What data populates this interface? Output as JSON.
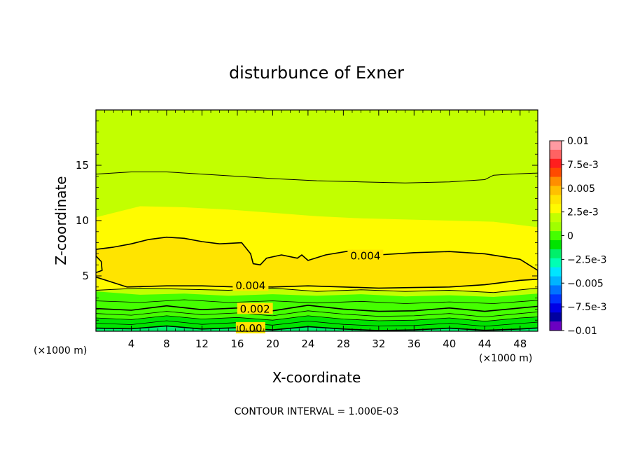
{
  "chart_data": {
    "type": "contour",
    "title": "disturbunce of Exner",
    "xlabel": "X-coordinate",
    "ylabel": "Z-coordinate",
    "x_unit_left": "(×1000 m)",
    "x_unit_right": "(×1000 m)",
    "footer": "CONTOUR INTERVAL = 1.000E-03",
    "xlim": [
      0,
      50
    ],
    "ylim": [
      0,
      20
    ],
    "x_ticks": [
      4,
      8,
      12,
      16,
      20,
      24,
      28,
      32,
      36,
      40,
      44,
      48
    ],
    "y_ticks": [
      5,
      10,
      15
    ],
    "colorbar": {
      "min": -0.01,
      "max": 0.01,
      "labels": [
        "0.01",
        "7.5e-3",
        "0.005",
        "2.5e-3",
        "0",
        "−2.5e-3",
        "−0.005",
        "−7.5e-3",
        "−0.01"
      ],
      "colors": [
        "#ff9aa2",
        "#ff6262",
        "#ff1e1e",
        "#ff4a00",
        "#ff8e00",
        "#ffc000",
        "#ffe400",
        "#fffb00",
        "#c2ff00",
        "#a0ff00",
        "#45ff00",
        "#00e400",
        "#00f06a",
        "#00ffb4",
        "#00e5ff",
        "#00b4ff",
        "#0073ff",
        "#0033ff",
        "#0000e6",
        "#0000a0",
        "#6a00c2"
      ]
    },
    "regions": [
      {
        "name": "fill-0.002",
        "color": "#45ff00",
        "points": [
          [
            0,
            0
          ],
          [
            0,
            3.6
          ],
          [
            5,
            3.3
          ],
          [
            10,
            3.4
          ],
          [
            15,
            3.2
          ],
          [
            20,
            3.35
          ],
          [
            25,
            3.2
          ],
          [
            30,
            3.35
          ],
          [
            35,
            3.15
          ],
          [
            40,
            3.25
          ],
          [
            45,
            3.1
          ],
          [
            50,
            3.4
          ],
          [
            50,
            0
          ]
        ]
      },
      {
        "name": "fill-0.001",
        "color": "#00e400",
        "points": [
          [
            0,
            0
          ],
          [
            0,
            1.2
          ],
          [
            4,
            1.05
          ],
          [
            8,
            1.4
          ],
          [
            12,
            1.1
          ],
          [
            16,
            1.25
          ],
          [
            20,
            1.0
          ],
          [
            24,
            1.4
          ],
          [
            28,
            1.1
          ],
          [
            32,
            0.95
          ],
          [
            36,
            1.0
          ],
          [
            40,
            1.2
          ],
          [
            44,
            0.9
          ],
          [
            48,
            1.2
          ],
          [
            50,
            1.3
          ],
          [
            50,
            0
          ]
        ]
      },
      {
        "name": "fill-0",
        "color": "#00f06a",
        "points": [
          [
            0,
            0
          ],
          [
            0,
            0.28
          ],
          [
            4,
            0.22
          ],
          [
            8,
            0.48
          ],
          [
            12,
            0.2
          ],
          [
            16,
            0.32
          ],
          [
            20,
            0.12
          ],
          [
            24,
            0.42
          ],
          [
            28,
            0.2
          ],
          [
            32,
            0.06
          ],
          [
            36,
            0.12
          ],
          [
            40,
            0.28
          ],
          [
            44,
            0.08
          ],
          [
            48,
            0.2
          ],
          [
            50,
            0.3
          ],
          [
            50,
            0
          ]
        ]
      },
      {
        "name": "fill-0.003",
        "color": "#fffb00",
        "points": [
          [
            0,
            3.7
          ],
          [
            5,
            3.9
          ],
          [
            10,
            3.8
          ],
          [
            15,
            3.7
          ],
          [
            20,
            3.9
          ],
          [
            25,
            3.6
          ],
          [
            30,
            3.75
          ],
          [
            35,
            3.6
          ],
          [
            40,
            3.7
          ],
          [
            45,
            3.5
          ],
          [
            50,
            3.9
          ],
          [
            50,
            9.4
          ],
          [
            45,
            9.9
          ],
          [
            40,
            10.0
          ],
          [
            35,
            10.1
          ],
          [
            30,
            10.2
          ],
          [
            25,
            10.4
          ],
          [
            20,
            10.7
          ],
          [
            15,
            11.0
          ],
          [
            10,
            11.2
          ],
          [
            5,
            11.3
          ],
          [
            1,
            10.5
          ],
          [
            0,
            10.3
          ]
        ]
      },
      {
        "name": "fill-0.004",
        "color": "#ffe400",
        "points": [
          [
            0,
            4.9
          ],
          [
            3.5,
            4.0
          ],
          [
            8,
            4.1
          ],
          [
            12,
            4.1
          ],
          [
            16,
            4.0
          ],
          [
            20,
            4.0
          ],
          [
            24,
            4.1
          ],
          [
            28,
            4.0
          ],
          [
            32,
            3.9
          ],
          [
            36,
            3.95
          ],
          [
            40,
            4.0
          ],
          [
            44,
            4.2
          ],
          [
            48,
            4.6
          ],
          [
            50,
            4.7
          ],
          [
            50,
            5.5
          ],
          [
            48,
            6.5
          ],
          [
            44,
            7.0
          ],
          [
            40,
            7.2
          ],
          [
            36,
            7.1
          ],
          [
            32,
            6.9
          ],
          [
            29,
            7.3
          ],
          [
            26,
            6.9
          ],
          [
            24,
            6.4
          ],
          [
            23.3,
            6.9
          ],
          [
            22.8,
            6.6
          ],
          [
            21,
            6.9
          ],
          [
            19.3,
            6.6
          ],
          [
            18.6,
            6.0
          ],
          [
            17.8,
            6.1
          ],
          [
            17.5,
            7.0
          ],
          [
            16.5,
            8.0
          ],
          [
            14,
            7.9
          ],
          [
            12,
            8.1
          ],
          [
            10,
            8.4
          ],
          [
            8,
            8.5
          ],
          [
            6,
            8.3
          ],
          [
            4,
            7.9
          ],
          [
            2,
            7.6
          ],
          [
            0,
            7.4
          ],
          [
            0,
            6.8
          ],
          [
            0.6,
            6.3
          ],
          [
            0.7,
            5.5
          ],
          [
            0,
            5.3
          ]
        ]
      }
    ],
    "contours": [
      {
        "name": "contour-0.003-lower",
        "width": 1,
        "points": [
          [
            0,
            3.7
          ],
          [
            5,
            3.9
          ],
          [
            10,
            3.8
          ],
          [
            15,
            3.7
          ],
          [
            20,
            3.9
          ],
          [
            25,
            3.6
          ],
          [
            30,
            3.75
          ],
          [
            35,
            3.6
          ],
          [
            40,
            3.7
          ],
          [
            45,
            3.5
          ],
          [
            50,
            3.9
          ]
        ]
      },
      {
        "name": "contour-0.002",
        "width": 1.6,
        "points": [
          [
            0,
            2.05
          ],
          [
            4,
            1.9
          ],
          [
            8,
            2.3
          ],
          [
            12,
            1.95
          ],
          [
            16,
            2.1
          ],
          [
            20,
            1.85
          ],
          [
            24,
            2.35
          ],
          [
            28,
            2.0
          ],
          [
            32,
            1.8
          ],
          [
            36,
            1.85
          ],
          [
            40,
            2.1
          ],
          [
            44,
            1.8
          ],
          [
            48,
            2.1
          ],
          [
            50,
            2.25
          ]
        ]
      },
      {
        "name": "contour-0.0025",
        "width": 0.8,
        "points": [
          [
            0,
            2.75
          ],
          [
            5,
            2.6
          ],
          [
            10,
            2.85
          ],
          [
            15,
            2.6
          ],
          [
            20,
            2.75
          ],
          [
            25,
            2.55
          ],
          [
            30,
            2.7
          ],
          [
            35,
            2.5
          ],
          [
            40,
            2.65
          ],
          [
            45,
            2.5
          ],
          [
            50,
            2.8
          ]
        ]
      },
      {
        "name": "contour-0.0015",
        "width": 0.8,
        "points": [
          [
            0,
            1.6
          ],
          [
            4,
            1.45
          ],
          [
            8,
            1.8
          ],
          [
            12,
            1.5
          ],
          [
            16,
            1.65
          ],
          [
            20,
            1.4
          ],
          [
            24,
            1.85
          ],
          [
            28,
            1.55
          ],
          [
            32,
            1.35
          ],
          [
            36,
            1.4
          ],
          [
            40,
            1.6
          ],
          [
            44,
            1.3
          ],
          [
            48,
            1.6
          ],
          [
            50,
            1.75
          ]
        ]
      },
      {
        "name": "contour-0.001",
        "width": 0.8,
        "points": [
          [
            0,
            1.2
          ],
          [
            4,
            1.05
          ],
          [
            8,
            1.4
          ],
          [
            12,
            1.1
          ],
          [
            16,
            1.25
          ],
          [
            20,
            1.0
          ],
          [
            24,
            1.4
          ],
          [
            28,
            1.1
          ],
          [
            32,
            0.95
          ],
          [
            36,
            1.0
          ],
          [
            40,
            1.2
          ],
          [
            44,
            0.9
          ],
          [
            48,
            1.2
          ],
          [
            50,
            1.3
          ]
        ]
      },
      {
        "name": "contour-0.0005",
        "width": 0.8,
        "points": [
          [
            0,
            0.72
          ],
          [
            4,
            0.6
          ],
          [
            8,
            0.95
          ],
          [
            12,
            0.62
          ],
          [
            16,
            0.78
          ],
          [
            20,
            0.55
          ],
          [
            24,
            0.92
          ],
          [
            28,
            0.62
          ],
          [
            32,
            0.48
          ],
          [
            36,
            0.52
          ],
          [
            40,
            0.72
          ],
          [
            44,
            0.45
          ],
          [
            48,
            0.7
          ],
          [
            50,
            0.82
          ]
        ]
      },
      {
        "name": "contour-0",
        "width": 1.6,
        "points": [
          [
            0,
            0.28
          ],
          [
            4,
            0.22
          ],
          [
            8,
            0.48
          ],
          [
            12,
            0.2
          ],
          [
            16,
            0.32
          ],
          [
            20,
            0.12
          ],
          [
            24,
            0.42
          ],
          [
            28,
            0.2
          ],
          [
            32,
            0.06
          ],
          [
            36,
            0.12
          ],
          [
            40,
            0.28
          ],
          [
            44,
            0.08
          ],
          [
            48,
            0.2
          ],
          [
            50,
            0.3
          ]
        ]
      },
      {
        "name": "contour-0.004",
        "width": 1.6,
        "points": [
          [
            0,
            4.9
          ],
          [
            3.5,
            4.0
          ],
          [
            8,
            4.1
          ],
          [
            12,
            4.1
          ],
          [
            16,
            4.0
          ],
          [
            20,
            4.0
          ],
          [
            24,
            4.1
          ],
          [
            28,
            4.0
          ],
          [
            32,
            3.9
          ],
          [
            36,
            3.95
          ],
          [
            40,
            4.0
          ],
          [
            44,
            4.2
          ],
          [
            48,
            4.6
          ],
          [
            50,
            4.7
          ],
          [
            50,
            5.5
          ],
          [
            48,
            6.5
          ],
          [
            44,
            7.0
          ],
          [
            40,
            7.2
          ],
          [
            36,
            7.1
          ],
          [
            32,
            6.9
          ],
          [
            29,
            7.3
          ],
          [
            26,
            6.9
          ],
          [
            24,
            6.4
          ],
          [
            23.3,
            6.9
          ],
          [
            22.8,
            6.6
          ],
          [
            21,
            6.9
          ],
          [
            19.3,
            6.6
          ],
          [
            18.6,
            6.0
          ],
          [
            17.8,
            6.1
          ],
          [
            17.5,
            7.0
          ],
          [
            16.5,
            8.0
          ],
          [
            14,
            7.9
          ],
          [
            12,
            8.1
          ],
          [
            10,
            8.4
          ],
          [
            8,
            8.5
          ],
          [
            6,
            8.3
          ],
          [
            4,
            7.9
          ],
          [
            2,
            7.6
          ],
          [
            0,
            7.4
          ],
          [
            0,
            6.8
          ],
          [
            0.6,
            6.3
          ],
          [
            0.7,
            5.5
          ],
          [
            0,
            5.3
          ]
        ]
      },
      {
        "name": "contour-0.002-upper",
        "width": 1,
        "points": [
          [
            0,
            14.2
          ],
          [
            4,
            14.4
          ],
          [
            8,
            14.4
          ],
          [
            12,
            14.2
          ],
          [
            16,
            14.0
          ],
          [
            20,
            13.8
          ],
          [
            25,
            13.6
          ],
          [
            30,
            13.5
          ],
          [
            35,
            13.4
          ],
          [
            40,
            13.5
          ],
          [
            44,
            13.7
          ],
          [
            45,
            14.1
          ],
          [
            47,
            14.2
          ],
          [
            50,
            14.3
          ]
        ]
      }
    ],
    "contour_labels": [
      {
        "text": "0.004",
        "x": 30.5,
        "y": 6.8
      },
      {
        "text": "0.004",
        "x": 17.5,
        "y": 4.1
      },
      {
        "text": "0.002",
        "x": 18.0,
        "y": 2.0
      },
      {
        "text": "0.00",
        "x": 17.5,
        "y": 0.25
      }
    ]
  }
}
